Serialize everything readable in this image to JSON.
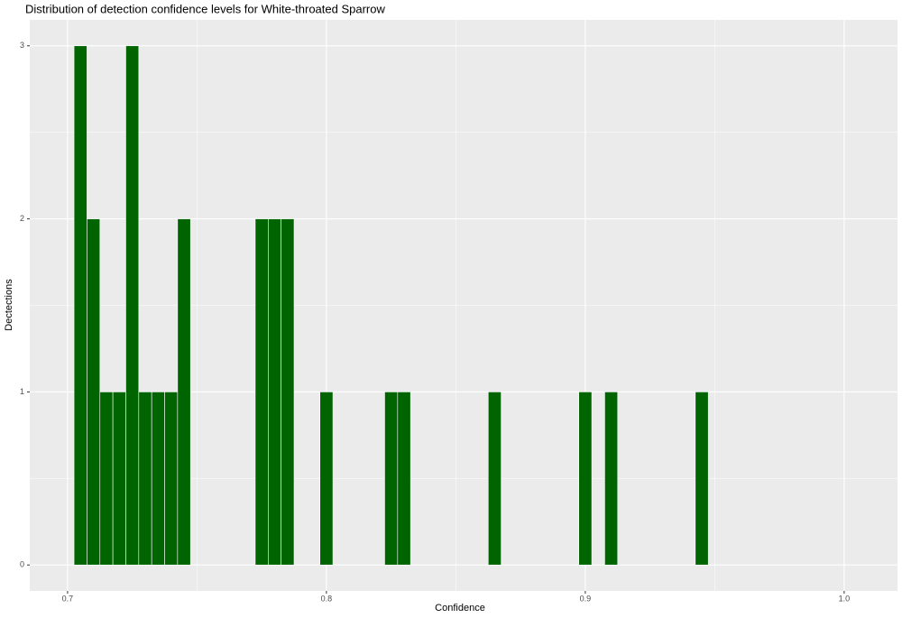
{
  "chart_data": {
    "type": "histogram",
    "title": "Distribution of detection confidence levels for White-throated Sparrow",
    "x_label": "Confidence",
    "y_label": "Dectections",
    "bins": [
      0.7025,
      0.7075,
      0.7125,
      0.7175,
      0.7225,
      0.7275,
      0.7325,
      0.7375,
      0.7425,
      0.7475,
      0.7525,
      0.7575,
      0.7625,
      0.7675,
      0.7725,
      0.7775,
      0.7825,
      0.7875,
      0.7925,
      0.7975,
      0.8025,
      0.8075,
      0.8125,
      0.8175,
      0.8225,
      0.8275,
      0.8325,
      0.8375,
      0.8425,
      0.8475,
      0.8525,
      0.8575,
      0.8625,
      0.8675,
      0.8725,
      0.8775,
      0.8825,
      0.8875,
      0.8925,
      0.8975,
      0.9025,
      0.9075,
      0.9125,
      0.9175,
      0.9225,
      0.9275,
      0.9325,
      0.9375,
      0.9425,
      0.9475
    ],
    "values": [
      3,
      2,
      1,
      1,
      3,
      1,
      1,
      1,
      2,
      0,
      0,
      0,
      0,
      0,
      2,
      2,
      2,
      0,
      0,
      1,
      0,
      0,
      0,
      0,
      1,
      1,
      0,
      0,
      0,
      0,
      0,
      0,
      1,
      0,
      0,
      0,
      0,
      0,
      0,
      1,
      0,
      1,
      0,
      0,
      0,
      0,
      0,
      0,
      1
    ],
    "color": "#006400",
    "xlim": [
      0.6854,
      1.0206
    ],
    "xticks": [
      0.7,
      0.8,
      0.9,
      {
        "value": 1,
        "label": "1.0"
      }
    ],
    "ylim": [
      -0.15,
      3.15
    ],
    "yticks": [
      0,
      1,
      2,
      3
    ],
    "grid": true
  }
}
